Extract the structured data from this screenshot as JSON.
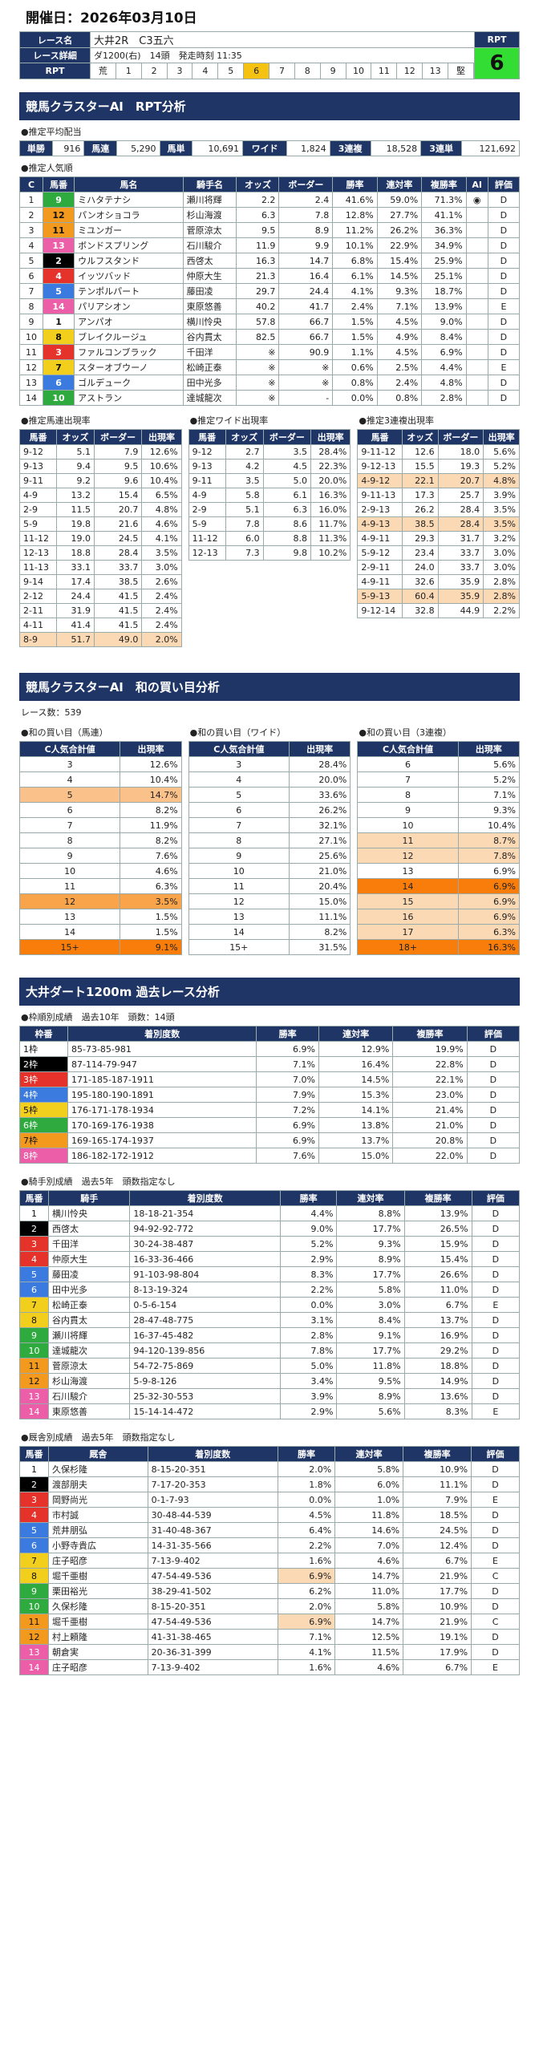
{
  "date": "開催日：2026年03月10日",
  "race": {
    "name_label": "レース名",
    "name": "大井2R　C3五六",
    "detail_label": "レース詳細",
    "detail": "ダ1200(右)　14頭　発走時刻 11:35",
    "rpt_label": "RPT",
    "rpt_value": "6",
    "rpt_row_label": "RPT",
    "rpt_nums": [
      "荒",
      "1",
      "2",
      "3",
      "4",
      "5",
      "6",
      "7",
      "8",
      "9",
      "10",
      "11",
      "12",
      "13",
      "堅"
    ]
  },
  "sec1": {
    "title": "競馬クラスターAI　RPT分析",
    "payout_label": "●推定平均配当",
    "payouts": [
      [
        "単勝",
        "916"
      ],
      [
        "馬連",
        "5,290"
      ],
      [
        "馬単",
        "10,691"
      ],
      [
        "ワイド",
        "1,824"
      ],
      [
        "3連複",
        "18,528"
      ],
      [
        "3連単",
        "121,692"
      ]
    ],
    "pop_label": "●推定人気順",
    "pop_headers": [
      "C",
      "馬番",
      "馬名",
      "騎手名",
      "オッズ",
      "ボーダー",
      "勝率",
      "連対率",
      "複勝率",
      "AI",
      "評価"
    ],
    "pop_rows": [
      [
        "1",
        "9",
        "ミハタテナシ",
        "瀬川将輝",
        "2.2",
        "2.4",
        "41.6%",
        "59.0%",
        "71.3%",
        "◉",
        "D"
      ],
      [
        "2",
        "12",
        "パンオショコラ",
        "杉山海渡",
        "6.3",
        "7.8",
        "12.8%",
        "27.7%",
        "41.1%",
        "",
        "D"
      ],
      [
        "3",
        "11",
        "ミユンガー",
        "菅原涼太",
        "9.5",
        "8.9",
        "11.2%",
        "26.2%",
        "36.3%",
        "",
        "D"
      ],
      [
        "4",
        "13",
        "ボンドスプリング",
        "石川駿介",
        "11.9",
        "9.9",
        "10.1%",
        "22.9%",
        "34.9%",
        "",
        "D"
      ],
      [
        "5",
        "2",
        "ウルフスタンド",
        "西啓太",
        "16.3",
        "14.7",
        "6.8%",
        "15.4%",
        "25.9%",
        "",
        "D"
      ],
      [
        "6",
        "4",
        "イッツバッド",
        "仲原大生",
        "21.3",
        "16.4",
        "6.1%",
        "14.5%",
        "25.1%",
        "",
        "D"
      ],
      [
        "7",
        "5",
        "テンポルパート",
        "藤田凌",
        "29.7",
        "24.4",
        "4.1%",
        "9.3%",
        "18.7%",
        "",
        "D"
      ],
      [
        "8",
        "14",
        "パリアシオン",
        "東原悠善",
        "40.2",
        "41.7",
        "2.4%",
        "7.1%",
        "13.9%",
        "",
        "E"
      ],
      [
        "9",
        "1",
        "アンパオ",
        "横川怜央",
        "57.8",
        "66.7",
        "1.5%",
        "4.5%",
        "9.0%",
        "",
        "D"
      ],
      [
        "10",
        "8",
        "ブレイクルージュ",
        "谷内貫太",
        "82.5",
        "66.7",
        "1.5%",
        "4.9%",
        "8.4%",
        "",
        "D"
      ],
      [
        "11",
        "3",
        "ファルコンブラック",
        "千田洋",
        "※",
        "90.9",
        "1.1%",
        "4.5%",
        "6.9%",
        "",
        "D"
      ],
      [
        "12",
        "7",
        "スターオブウーノ",
        "松崎正泰",
        "※",
        "※",
        "0.6%",
        "2.5%",
        "4.4%",
        "",
        "E"
      ],
      [
        "13",
        "6",
        "ゴルデューク",
        "田中光多",
        "※",
        "※",
        "0.8%",
        "2.4%",
        "4.8%",
        "",
        "D"
      ],
      [
        "14",
        "10",
        "アストラン",
        "達城龍次",
        "※",
        "-",
        "0.0%",
        "0.8%",
        "2.8%",
        "",
        "D"
      ]
    ],
    "umaren_label": "●推定馬連出現率",
    "wide_label": "●推定ワイド出現率",
    "sanren_label": "●推定3連複出現率",
    "h3": [
      "馬番",
      "オッズ",
      "ボーダー",
      "出現率"
    ],
    "umaren": [
      [
        "9-12",
        "5.1",
        "7.9",
        "12.6%"
      ],
      [
        "9-13",
        "9.4",
        "9.5",
        "10.6%"
      ],
      [
        "9-11",
        "9.2",
        "9.6",
        "10.4%"
      ],
      [
        "4-9",
        "13.2",
        "15.4",
        "6.5%"
      ],
      [
        "2-9",
        "11.5",
        "20.7",
        "4.8%"
      ],
      [
        "5-9",
        "19.8",
        "21.6",
        "4.6%"
      ],
      [
        "11-12",
        "19.0",
        "24.5",
        "4.1%"
      ],
      [
        "12-13",
        "18.8",
        "28.4",
        "3.5%"
      ],
      [
        "11-13",
        "33.1",
        "33.7",
        "3.0%"
      ],
      [
        "9-14",
        "17.4",
        "38.5",
        "2.6%"
      ],
      [
        "2-12",
        "24.4",
        "41.5",
        "2.4%"
      ],
      [
        "2-11",
        "31.9",
        "41.5",
        "2.4%"
      ],
      [
        "4-11",
        "41.4",
        "41.5",
        "2.4%"
      ],
      [
        "8-9",
        "51.7",
        "49.0",
        "2.0%"
      ]
    ],
    "wide": [
      [
        "9-12",
        "2.7",
        "3.5",
        "28.4%"
      ],
      [
        "9-13",
        "4.2",
        "4.5",
        "22.3%"
      ],
      [
        "9-11",
        "3.5",
        "5.0",
        "20.0%"
      ],
      [
        "4-9",
        "5.8",
        "6.1",
        "16.3%"
      ],
      [
        "2-9",
        "5.1",
        "6.3",
        "16.0%"
      ],
      [
        "5-9",
        "7.8",
        "8.6",
        "11.7%"
      ],
      [
        "11-12",
        "6.0",
        "8.8",
        "11.3%"
      ],
      [
        "12-13",
        "7.3",
        "9.8",
        "10.2%"
      ]
    ],
    "sanren": [
      [
        "9-11-12",
        "12.6",
        "18.0",
        "5.6%"
      ],
      [
        "9-12-13",
        "15.5",
        "19.3",
        "5.2%"
      ],
      [
        "4-9-12",
        "22.1",
        "20.7",
        "4.8%"
      ],
      [
        "9-11-13",
        "17.3",
        "25.7",
        "3.9%"
      ],
      [
        "2-9-13",
        "26.2",
        "28.4",
        "3.5%"
      ],
      [
        "4-9-13",
        "38.5",
        "28.4",
        "3.5%"
      ],
      [
        "4-9-11",
        "29.3",
        "31.7",
        "3.2%"
      ],
      [
        "5-9-12",
        "23.4",
        "33.7",
        "3.0%"
      ],
      [
        "2-9-11",
        "24.0",
        "33.7",
        "3.0%"
      ],
      [
        "4-9-11",
        "32.6",
        "35.9",
        "2.8%"
      ],
      [
        "5-9-13",
        "60.4",
        "35.9",
        "2.8%"
      ],
      [
        "9-12-14",
        "32.8",
        "44.9",
        "2.2%"
      ]
    ]
  },
  "sec2": {
    "title": "競馬クラスターAI　和の買い目分析",
    "races": "レース数：539",
    "l1": "●和の買い目（馬連）",
    "l2": "●和の買い目（ワイド）",
    "l3": "●和の買い目（3連複）",
    "h1": "C人気合計値",
    "h2": "出現率",
    "umaren": [
      [
        "3",
        "12.6%"
      ],
      [
        "4",
        "10.4%"
      ],
      [
        "5",
        "14.7%"
      ],
      [
        "6",
        "8.2%"
      ],
      [
        "7",
        "11.9%"
      ],
      [
        "8",
        "8.2%"
      ],
      [
        "9",
        "7.6%"
      ],
      [
        "10",
        "4.6%"
      ],
      [
        "11",
        "6.3%"
      ],
      [
        "12",
        "3.5%"
      ],
      [
        "13",
        "1.5%"
      ],
      [
        "14",
        "1.5%"
      ],
      [
        "15+",
        "9.1%"
      ]
    ],
    "wide": [
      [
        "3",
        "28.4%"
      ],
      [
        "4",
        "20.0%"
      ],
      [
        "5",
        "33.6%"
      ],
      [
        "6",
        "26.2%"
      ],
      [
        "7",
        "32.1%"
      ],
      [
        "8",
        "27.1%"
      ],
      [
        "9",
        "25.6%"
      ],
      [
        "10",
        "21.0%"
      ],
      [
        "11",
        "20.4%"
      ],
      [
        "12",
        "15.0%"
      ],
      [
        "13",
        "11.1%"
      ],
      [
        "14",
        "8.2%"
      ],
      [
        "15+",
        "31.5%"
      ]
    ],
    "sanren": [
      [
        "6",
        "5.6%"
      ],
      [
        "7",
        "5.2%"
      ],
      [
        "8",
        "7.1%"
      ],
      [
        "9",
        "9.3%"
      ],
      [
        "10",
        "10.4%"
      ],
      [
        "11",
        "8.7%"
      ],
      [
        "12",
        "7.8%"
      ],
      [
        "13",
        "6.9%"
      ],
      [
        "14",
        "6.9%"
      ],
      [
        "15",
        "6.9%"
      ],
      [
        "16",
        "6.9%"
      ],
      [
        "17",
        "6.3%"
      ],
      [
        "18+",
        "16.3%"
      ]
    ]
  },
  "sec3": {
    "title": "大井ダート1200m 過去レース分析",
    "frame_label": "●枠順別成績　過去10年　頭数：14頭",
    "frame_h": [
      "枠番",
      "着別度数",
      "勝率",
      "連対率",
      "複勝率",
      "評価"
    ],
    "frames": [
      [
        "1枠",
        "85-73-85-981",
        "6.9%",
        "12.9%",
        "19.9%",
        "D"
      ],
      [
        "2枠",
        "87-114-79-947",
        "7.1%",
        "16.4%",
        "22.8%",
        "D"
      ],
      [
        "3枠",
        "171-185-187-1911",
        "7.0%",
        "14.5%",
        "22.1%",
        "D"
      ],
      [
        "4枠",
        "195-180-190-1891",
        "7.9%",
        "15.3%",
        "23.0%",
        "D"
      ],
      [
        "5枠",
        "176-171-178-1934",
        "7.2%",
        "14.1%",
        "21.4%",
        "D"
      ],
      [
        "6枠",
        "170-169-176-1938",
        "6.9%",
        "13.8%",
        "21.0%",
        "D"
      ],
      [
        "7枠",
        "169-165-174-1937",
        "6.9%",
        "13.7%",
        "20.8%",
        "D"
      ],
      [
        "8枠",
        "186-182-172-1912",
        "7.6%",
        "15.0%",
        "22.0%",
        "D"
      ]
    ],
    "jockey_label": "●騎手別成績　過去5年　頭数指定なし",
    "jockey_h": [
      "馬番",
      "騎手",
      "着別度数",
      "勝率",
      "連対率",
      "複勝率",
      "評価"
    ],
    "jockeys": [
      [
        "1",
        "横川怜央",
        "18-18-21-354",
        "4.4%",
        "8.8%",
        "13.9%",
        "D"
      ],
      [
        "2",
        "西啓太",
        "94-92-92-772",
        "9.0%",
        "17.7%",
        "26.5%",
        "D"
      ],
      [
        "3",
        "千田洋",
        "30-24-38-487",
        "5.2%",
        "9.3%",
        "15.9%",
        "D"
      ],
      [
        "4",
        "仲原大生",
        "16-33-36-466",
        "2.9%",
        "8.9%",
        "15.4%",
        "D"
      ],
      [
        "5",
        "藤田凌",
        "91-103-98-804",
        "8.3%",
        "17.7%",
        "26.6%",
        "D"
      ],
      [
        "6",
        "田中光多",
        "8-13-19-324",
        "2.2%",
        "5.8%",
        "11.0%",
        "D"
      ],
      [
        "7",
        "松崎正泰",
        "0-5-6-154",
        "0.0%",
        "3.0%",
        "6.7%",
        "E"
      ],
      [
        "8",
        "谷内貫太",
        "28-47-48-775",
        "3.1%",
        "8.4%",
        "13.7%",
        "D"
      ],
      [
        "9",
        "瀬川将輝",
        "16-37-45-482",
        "2.8%",
        "9.1%",
        "16.9%",
        "D"
      ],
      [
        "10",
        "達城龍次",
        "94-120-139-856",
        "7.8%",
        "17.7%",
        "29.2%",
        "D"
      ],
      [
        "11",
        "菅原涼太",
        "54-72-75-869",
        "5.0%",
        "11.8%",
        "18.8%",
        "D"
      ],
      [
        "12",
        "杉山海渡",
        "5-9-8-126",
        "3.4%",
        "9.5%",
        "14.9%",
        "D"
      ],
      [
        "13",
        "石川駿介",
        "25-32-30-553",
        "3.9%",
        "8.9%",
        "13.6%",
        "D"
      ],
      [
        "14",
        "東原悠善",
        "15-14-14-472",
        "2.9%",
        "5.6%",
        "8.3%",
        "E"
      ]
    ],
    "trainer_label": "●厩舎別成績　過去5年　頭数指定なし",
    "trainer_h": [
      "馬番",
      "厩舎",
      "着別度数",
      "勝率",
      "連対率",
      "複勝率",
      "評価"
    ],
    "trainers": [
      [
        "1",
        "久保杉隆",
        "8-15-20-351",
        "2.0%",
        "5.8%",
        "10.9%",
        "D"
      ],
      [
        "2",
        "渡部朋夫",
        "7-17-20-353",
        "1.8%",
        "6.0%",
        "11.1%",
        "D"
      ],
      [
        "3",
        "岡野尚光",
        "0-1-7-93",
        "0.0%",
        "1.0%",
        "7.9%",
        "E"
      ],
      [
        "4",
        "市村誠",
        "30-48-44-539",
        "4.5%",
        "11.8%",
        "18.5%",
        "D"
      ],
      [
        "5",
        "荒井朋弘",
        "31-40-48-367",
        "6.4%",
        "14.6%",
        "24.5%",
        "D"
      ],
      [
        "6",
        "小野寺貴広",
        "14-31-35-566",
        "2.2%",
        "7.0%",
        "12.4%",
        "D"
      ],
      [
        "7",
        "庄子昭彦",
        "7-13-9-402",
        "1.6%",
        "4.6%",
        "6.7%",
        "E"
      ],
      [
        "8",
        "堀千亜樹",
        "47-54-49-536",
        "6.9%",
        "14.7%",
        "21.9%",
        "C"
      ],
      [
        "9",
        "栗田裕光",
        "38-29-41-502",
        "6.2%",
        "11.0%",
        "17.7%",
        "D"
      ],
      [
        "10",
        "久保杉隆",
        "8-15-20-351",
        "2.0%",
        "5.8%",
        "10.9%",
        "D"
      ],
      [
        "11",
        "堀千亜樹",
        "47-54-49-536",
        "6.9%",
        "14.7%",
        "21.9%",
        "C"
      ],
      [
        "12",
        "村上頼隆",
        "41-31-38-465",
        "7.1%",
        "12.5%",
        "19.1%",
        "D"
      ],
      [
        "13",
        "朝倉実",
        "20-36-31-399",
        "4.1%",
        "11.5%",
        "17.9%",
        "D"
      ],
      [
        "14",
        "庄子昭彦",
        "7-13-9-402",
        "1.6%",
        "4.6%",
        "6.7%",
        "E"
      ]
    ]
  }
}
